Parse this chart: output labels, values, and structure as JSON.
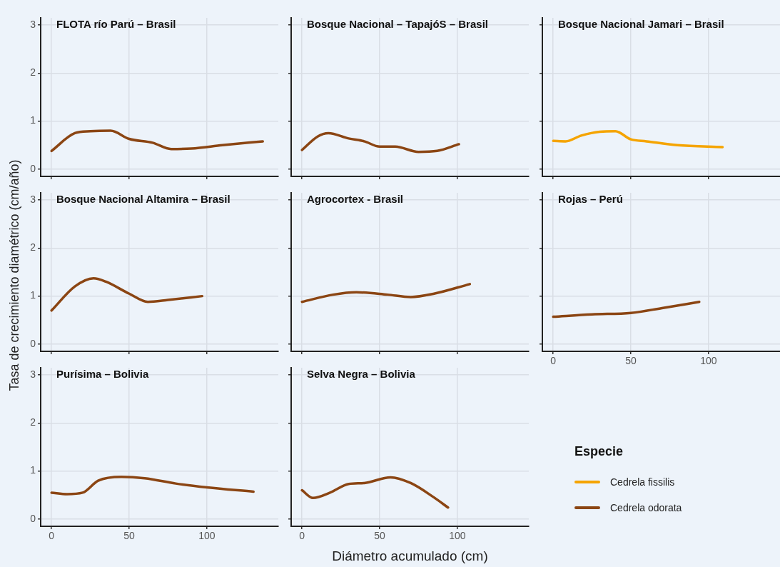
{
  "chart_data": [
    {
      "type": "line",
      "title": "FLOTA río Parú – Brasil",
      "xlim": [
        -7,
        146
      ],
      "xticks": [
        0,
        50,
        100
      ],
      "ylim": [
        -0.15,
        3.15
      ],
      "yticks": [
        0,
        1,
        2,
        3
      ],
      "grid": true,
      "tick_labels": "y",
      "marker": "none",
      "series": [
        {
          "name": "Cedrela odorata",
          "color": "#8b4513",
          "x": [
            0,
            15,
            25,
            38,
            50,
            65,
            77,
            90,
            110,
            136
          ],
          "values": [
            0.38,
            0.75,
            0.79,
            0.8,
            0.63,
            0.55,
            0.42,
            0.43,
            0.5,
            0.58
          ]
        }
      ]
    },
    {
      "type": "line",
      "title": "Bosque Nacional – TapajóS – Brasil",
      "xlim": [
        -7,
        146
      ],
      "xticks": [
        0,
        50,
        100
      ],
      "ylim": [
        -0.15,
        3.15
      ],
      "yticks": [
        0,
        1,
        2,
        3
      ],
      "grid": true,
      "tick_labels": false,
      "marker": "none",
      "series": [
        {
          "name": "Cedrela odorata",
          "color": "#8b4513",
          "x": [
            0,
            10,
            17,
            30,
            40,
            50,
            60,
            75,
            87,
            101
          ],
          "values": [
            0.4,
            0.68,
            0.75,
            0.64,
            0.58,
            0.47,
            0.47,
            0.36,
            0.38,
            0.52
          ]
        }
      ]
    },
    {
      "type": "line",
      "title": "Bosque Nacional Jamari – Brasil",
      "xlim": [
        -7,
        146
      ],
      "xticks": [
        0,
        50,
        100
      ],
      "ylim": [
        -0.15,
        3.15
      ],
      "yticks": [
        0,
        1,
        2,
        3
      ],
      "grid": true,
      "tick_labels": false,
      "marker": "none",
      "series": [
        {
          "name": "Cedrela fissilis",
          "color": "#f5a400",
          "x": [
            0,
            8,
            18,
            30,
            40,
            50,
            60,
            80,
            109
          ],
          "values": [
            0.59,
            0.58,
            0.7,
            0.78,
            0.79,
            0.62,
            0.58,
            0.5,
            0.46
          ]
        }
      ]
    },
    {
      "type": "line",
      "title": "Bosque Nacional Altamira – Brasil",
      "ylabel": "Tasa de crecimiento diamétrico (cm/año)",
      "xlim": [
        -7,
        146
      ],
      "xticks": [
        0,
        50,
        100
      ],
      "ylim": [
        -0.15,
        3.15
      ],
      "yticks": [
        0,
        1,
        2,
        3
      ],
      "grid": true,
      "tick_labels": "y",
      "marker": "none",
      "series": [
        {
          "name": "Cedrela odorata",
          "color": "#8b4513",
          "x": [
            0,
            15,
            27,
            35,
            50,
            62,
            75,
            97
          ],
          "values": [
            0.7,
            1.2,
            1.37,
            1.3,
            1.05,
            0.88,
            0.92,
            1.0
          ]
        }
      ]
    },
    {
      "type": "line",
      "title": "Agrocortex - Brasil",
      "xlim": [
        -7,
        146
      ],
      "xticks": [
        0,
        50,
        100
      ],
      "ylim": [
        -0.15,
        3.15
      ],
      "yticks": [
        0,
        1,
        2,
        3
      ],
      "grid": true,
      "tick_labels": false,
      "marker": "none",
      "series": [
        {
          "name": "Cedrela odorata",
          "color": "#8b4513",
          "x": [
            0,
            20,
            35,
            55,
            70,
            85,
            108
          ],
          "values": [
            0.88,
            1.03,
            1.08,
            1.03,
            0.98,
            1.05,
            1.25
          ]
        }
      ]
    },
    {
      "type": "line",
      "title": "Rojas – Perú",
      "xlim": [
        -7,
        146
      ],
      "xticks": [
        0,
        50,
        100
      ],
      "ylim": [
        -0.15,
        3.15
      ],
      "yticks": [
        0,
        1,
        2,
        3
      ],
      "grid": true,
      "tick_labels": "x",
      "marker": "none",
      "series": [
        {
          "name": "Cedrela odorata",
          "color": "#8b4513",
          "x": [
            0,
            25,
            50,
            70,
            94
          ],
          "values": [
            0.57,
            0.62,
            0.65,
            0.75,
            0.88
          ]
        }
      ]
    },
    {
      "type": "line",
      "title": "Purísima – Bolivia",
      "xlim": [
        -7,
        146
      ],
      "xticks": [
        0,
        50,
        100
      ],
      "ylim": [
        -0.15,
        3.15
      ],
      "yticks": [
        0,
        1,
        2,
        3
      ],
      "grid": true,
      "marker": "none",
      "series": [
        {
          "name": "Cedrela odorata",
          "color": "#8b4513",
          "x": [
            0,
            10,
            20,
            30,
            45,
            60,
            80,
            100,
            130
          ],
          "values": [
            0.55,
            0.52,
            0.55,
            0.8,
            0.88,
            0.85,
            0.74,
            0.66,
            0.57
          ]
        }
      ]
    },
    {
      "type": "line",
      "title": "Selva Negra – Bolivia",
      "xlabel": "Diámetro acumulado (cm)",
      "legend_title": "Especie",
      "legend": "right",
      "xlim": [
        -7,
        146
      ],
      "xticks": [
        0,
        50,
        100
      ],
      "ylim": [
        -0.15,
        3.15
      ],
      "yticks": [
        0,
        1,
        2,
        3
      ],
      "grid": true,
      "tick_labels": "x",
      "marker": "none",
      "series": [
        {
          "name": "Cedrela odorata",
          "color": "#8b4513",
          "x": [
            0,
            7,
            18,
            30,
            40,
            57,
            70,
            85,
            94
          ],
          "values": [
            0.6,
            0.44,
            0.55,
            0.73,
            0.75,
            0.87,
            0.75,
            0.45,
            0.24
          ]
        }
      ]
    }
  ]
}
